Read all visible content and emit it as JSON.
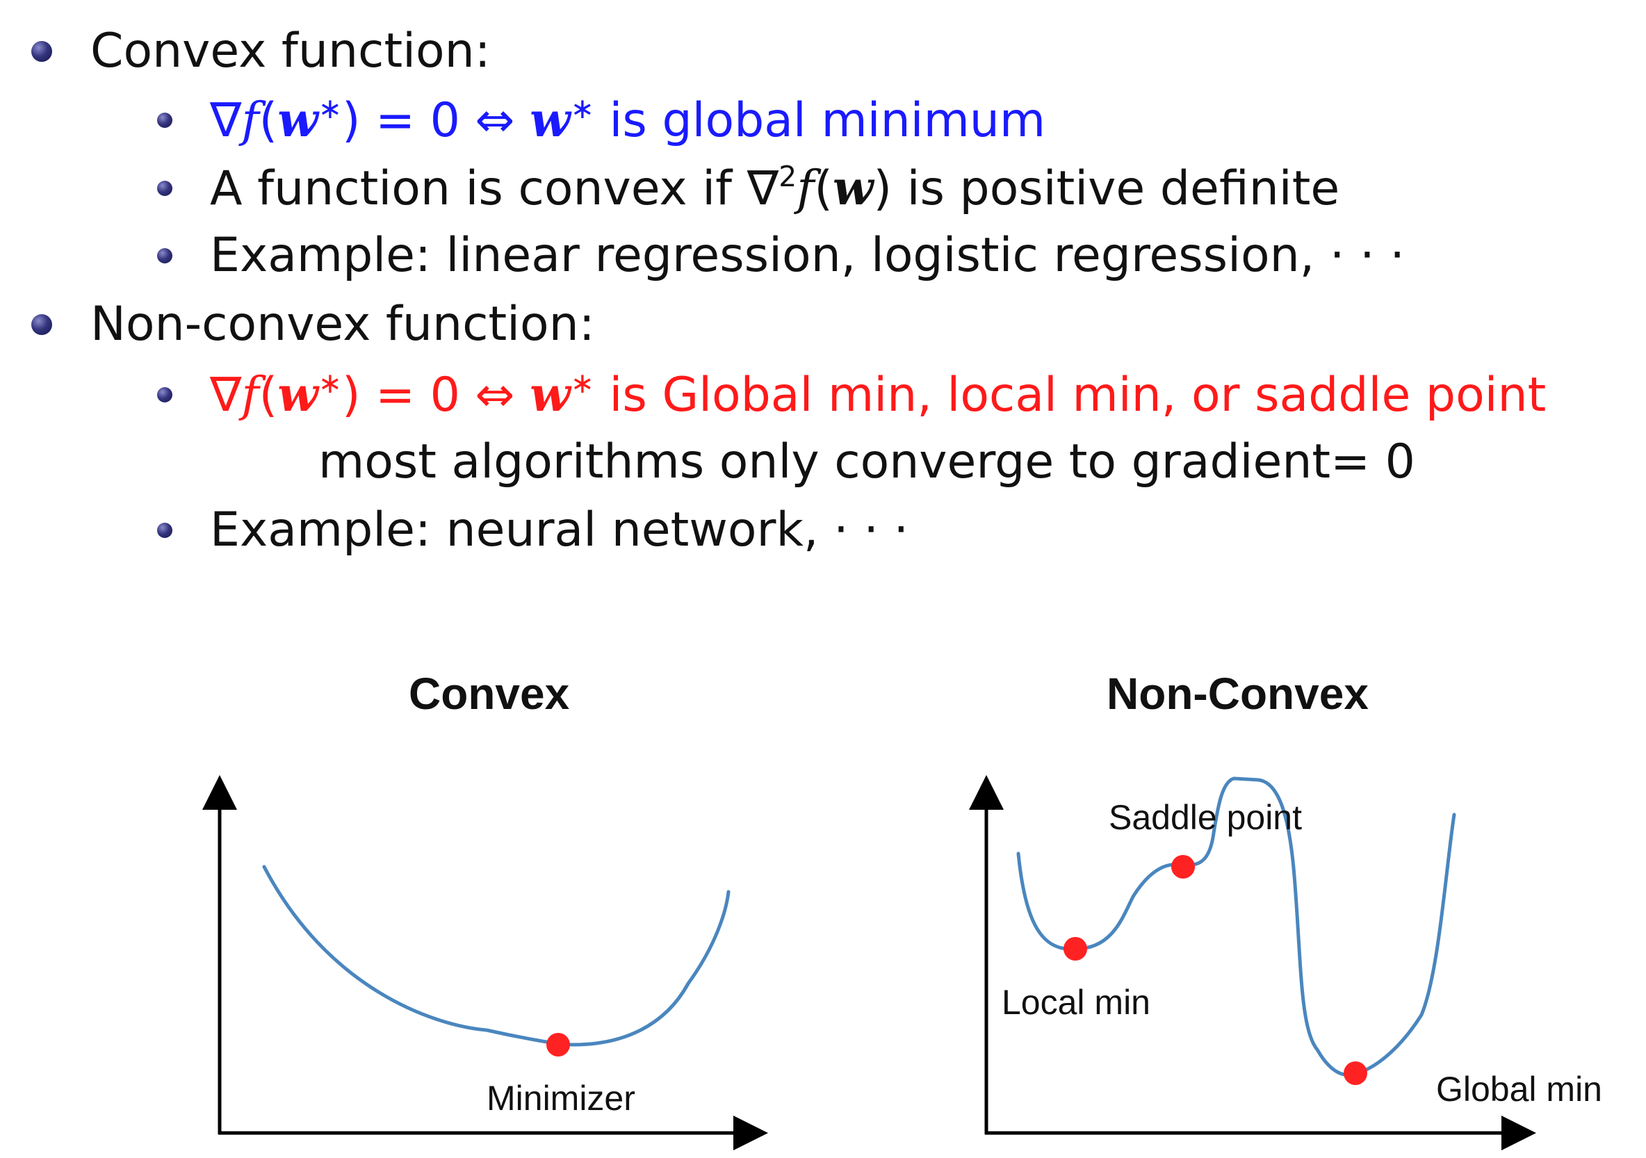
{
  "bullets": {
    "convex": {
      "label": "Convex function:",
      "sub": [
        {
          "grad": "∇",
          "f": "f",
          "open": "(",
          "w": "w",
          "star": "∗",
          "close": ")",
          "eq": " = 0 ⇔ ",
          "w2": "w",
          "star2": "∗",
          "rest": " is global minimum"
        },
        {
          "text1": "A function is convex if ∇",
          "sup": "2",
          "f": "f",
          "open": "(",
          "w": "w",
          "text2": ") is positive definite"
        },
        {
          "text": "Example: linear regression, logistic regression, · · ·"
        }
      ]
    },
    "nonconvex": {
      "label": "Non-convex function:",
      "sub": [
        {
          "grad": "∇",
          "f": "f",
          "open": "(",
          "w": "w",
          "star": "∗",
          "close": ")",
          "eq": " = 0 ⇔ ",
          "w2": "w",
          "star2": "∗",
          "rest": " is Global min, local min, or saddle point"
        },
        {
          "text": "most algorithms only converge to gradient= 0"
        },
        {
          "text": "Example: neural network, · · ·"
        }
      ]
    }
  },
  "diagrams": {
    "convex": {
      "title": "Convex",
      "point_label": "Minimizer"
    },
    "nonconvex": {
      "title": "Non-Convex",
      "saddle_label": "Saddle point",
      "local_label": "Local min",
      "global_label": "Global min"
    }
  },
  "colors": {
    "curve": "#4a86be",
    "point": "#ff2222",
    "axis": "#000000",
    "blue_text": "#1a1aff",
    "red_text": "#ff1a1a"
  }
}
